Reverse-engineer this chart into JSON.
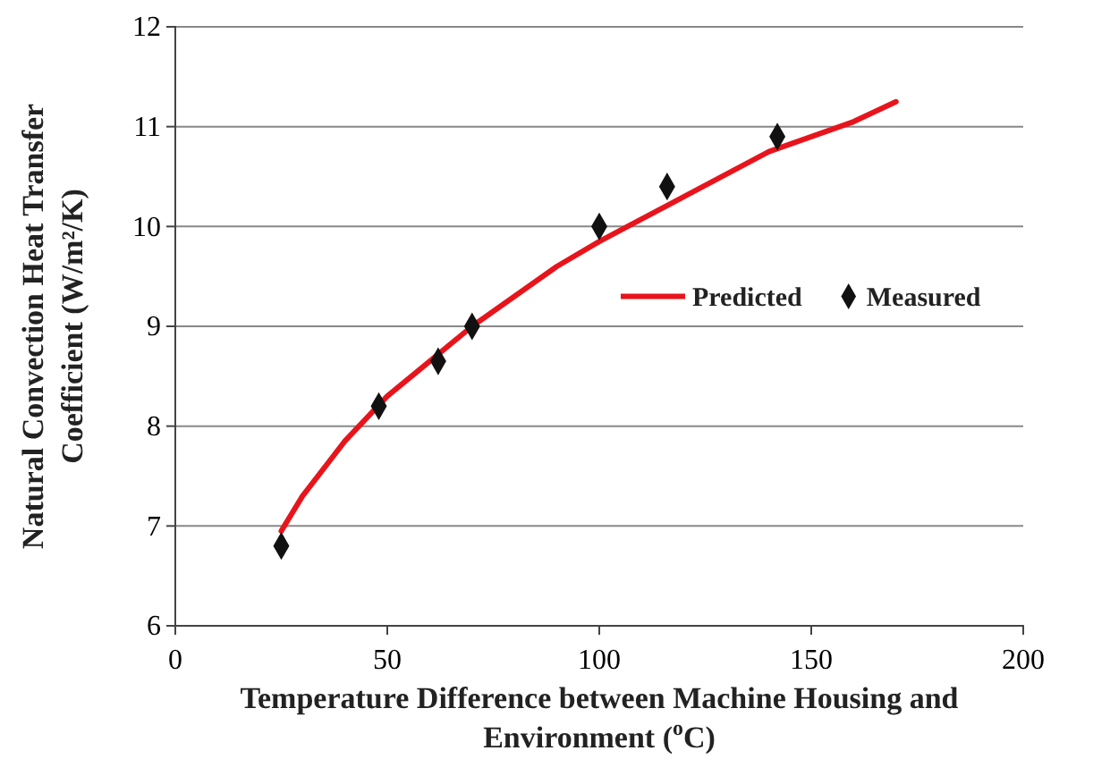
{
  "chart_data": {
    "type": "line",
    "xlabel": "Temperature  Difference between Machine Housing and Environment ($^{o}$C)",
    "ylabel": "Natural Convection Heat Transfer Coefficient (W/m²/K)",
    "xlim": [
      0,
      200
    ],
    "xticks": [
      0,
      50,
      100,
      150,
      200
    ],
    "ylim": [
      6,
      12
    ],
    "yticks": [
      6,
      7,
      8,
      9,
      10,
      11,
      12
    ],
    "grid": "y",
    "legend": "right",
    "series": [
      {
        "name": "Predicted",
        "color": "#e8141c",
        "marker": "none",
        "line_style": "solid",
        "x": [
          25,
          30,
          40,
          50,
          60,
          70,
          80,
          90,
          100,
          120,
          140,
          160,
          170
        ],
        "values": [
          6.95,
          7.3,
          7.85,
          8.3,
          8.65,
          9.0,
          9.3,
          9.6,
          9.85,
          10.3,
          10.75,
          11.05,
          11.25
        ]
      },
      {
        "name": "Measured",
        "type": "scatter",
        "color": "#111111",
        "marker": "diamond",
        "x": [
          25,
          48,
          62,
          70,
          100,
          116,
          142
        ],
        "values": [
          6.8,
          8.2,
          8.65,
          9.0,
          10.0,
          10.4,
          10.9
        ]
      }
    ]
  }
}
